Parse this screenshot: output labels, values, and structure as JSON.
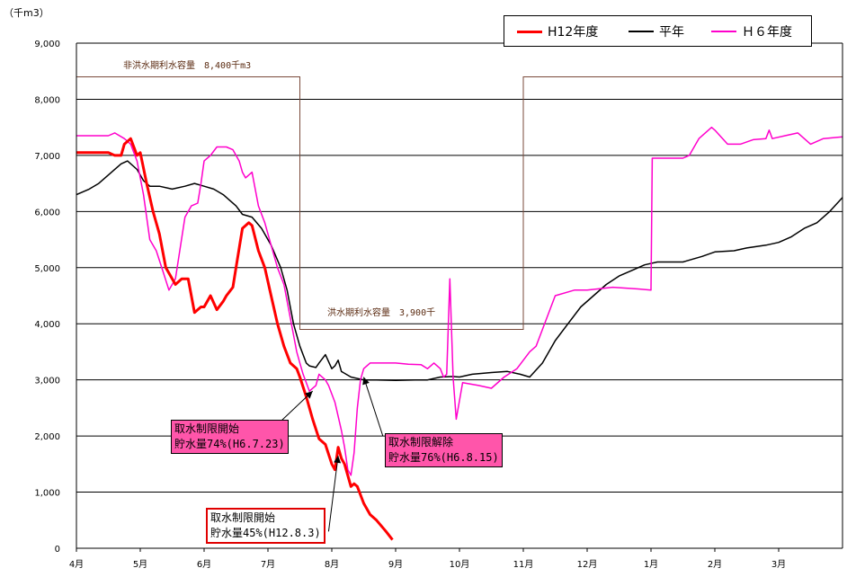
{
  "unit_label": "（千m3）",
  "legend": [
    {
      "label": "H12年度",
      "color": "#ff0000",
      "width": 3
    },
    {
      "label": "平年",
      "color": "#000000",
      "width": 1.5
    },
    {
      "label": "Ｈ６年度",
      "color": "#ff00cc",
      "width": 1.5
    }
  ],
  "annotations": {
    "non_flood_capacity": "非洪水期利水容量　8,400千m3",
    "flood_capacity": "洪水期利水容量　3,900千"
  },
  "callouts": [
    {
      "line1": "取水制限開始",
      "line2": "貯水量74%(H6.7.23)",
      "style": "pink"
    },
    {
      "line1": "取水制限解除",
      "line2": "貯水量76%(H6.8.15)",
      "style": "pink"
    },
    {
      "line1": "取水制限開始",
      "line2": "貯水量45%(H12.8.3)",
      "style": "white"
    }
  ],
  "chart_data": {
    "type": "line",
    "ylim": [
      0,
      9000
    ],
    "yticks": [
      0,
      1000,
      2000,
      3000,
      4000,
      5000,
      6000,
      7000,
      8000,
      9000
    ],
    "ytick_labels": [
      "0",
      "1,000",
      "2,000",
      "3,000",
      "4,000",
      "5,000",
      "6,000",
      "7,000",
      "8,000",
      "9,000"
    ],
    "xlim": [
      0,
      12
    ],
    "xticks": [
      0,
      1,
      2,
      3,
      4,
      5,
      6,
      7,
      8,
      9,
      10,
      11
    ],
    "xtick_labels": [
      "4月",
      "5月",
      "6月",
      "7月",
      "8月",
      "9月",
      "10月",
      "11月",
      "12月",
      "1月",
      "2月",
      "3月"
    ],
    "grid": true,
    "legend_position": "top-right",
    "capacity_line": {
      "x": [
        0,
        3.5,
        3.5,
        7,
        7,
        12
      ],
      "y": [
        8400,
        8400,
        3900,
        3900,
        8400,
        8400
      ]
    },
    "series": [
      {
        "name": "平年",
        "x": [
          0,
          0.2,
          0.35,
          0.55,
          0.7,
          0.8,
          0.95,
          1.05,
          1.15,
          1.3,
          1.5,
          1.7,
          1.85,
          2.0,
          2.15,
          2.3,
          2.5,
          2.6,
          2.75,
          2.9,
          3.05,
          3.2,
          3.3,
          3.4,
          3.5,
          3.6,
          3.65,
          3.75,
          3.8,
          3.9,
          4.0,
          4.05,
          4.1,
          4.15,
          4.3,
          4.5,
          4.7,
          5.0,
          5.3,
          5.5,
          5.7,
          5.9,
          6.0,
          6.2,
          6.5,
          6.75,
          6.95,
          7.1,
          7.3,
          7.5,
          7.7,
          7.9,
          8.1,
          8.3,
          8.5,
          8.7,
          8.9,
          9.1,
          9.5,
          9.8,
          10.0,
          10.3,
          10.5,
          10.8,
          11.0,
          11.2,
          11.4,
          11.6,
          11.8,
          12.0
        ],
        "y": [
          6300,
          6400,
          6500,
          6700,
          6850,
          6900,
          6750,
          6550,
          6450,
          6450,
          6400,
          6450,
          6500,
          6450,
          6400,
          6300,
          6100,
          5950,
          5900,
          5700,
          5400,
          5000,
          4600,
          4000,
          3600,
          3300,
          3250,
          3220,
          3300,
          3450,
          3200,
          3250,
          3350,
          3150,
          3050,
          3000,
          3000,
          2990,
          3000,
          3000,
          3050,
          3060,
          3050,
          3100,
          3130,
          3150,
          3100,
          3050,
          3300,
          3700,
          4000,
          4300,
          4500,
          4700,
          4850,
          4950,
          5050,
          5100,
          5100,
          5200,
          5280,
          5300,
          5350,
          5400,
          5450,
          5550,
          5700,
          5800,
          6000,
          6250
        ]
      },
      {
        "name": "H６年度",
        "x": [
          0,
          0.2,
          0.5,
          0.6,
          0.75,
          0.85,
          0.95,
          1.05,
          1.15,
          1.25,
          1.35,
          1.45,
          1.55,
          1.7,
          1.8,
          1.9,
          1.95,
          2.0,
          2.1,
          2.2,
          2.35,
          2.45,
          2.55,
          2.6,
          2.65,
          2.75,
          2.85,
          2.95,
          3.05,
          3.15,
          3.25,
          3.35,
          3.45,
          3.5,
          3.55,
          3.6,
          3.65,
          3.75,
          3.8,
          3.9,
          3.95,
          4.05,
          4.15,
          4.2,
          4.25,
          4.3,
          4.35,
          4.4,
          4.45,
          4.5,
          4.6,
          4.8,
          5.0,
          5.2,
          5.4,
          5.5,
          5.6,
          5.7,
          5.75,
          5.8,
          5.85,
          5.9,
          5.95,
          6.05,
          6.3,
          6.5,
          6.7,
          6.9,
          7.1,
          7.2,
          7.3,
          7.5,
          7.8,
          8.0,
          8.4,
          8.8,
          9.0,
          9.02,
          9.2,
          9.5,
          9.6,
          9.75,
          9.95,
          10.0,
          10.2,
          10.4,
          10.6,
          10.8,
          10.85,
          10.9,
          11.1,
          11.3,
          11.5,
          11.7,
          12.0
        ],
        "y": [
          7350,
          7350,
          7350,
          7400,
          7300,
          7200,
          6900,
          6300,
          5500,
          5300,
          4950,
          4600,
          4800,
          5900,
          6100,
          6150,
          6500,
          6900,
          7000,
          7150,
          7150,
          7100,
          6900,
          6700,
          6600,
          6700,
          6100,
          5800,
          5400,
          5000,
          4700,
          4100,
          3500,
          3300,
          3100,
          2950,
          2800,
          2900,
          3100,
          3000,
          2900,
          2600,
          2100,
          1800,
          1400,
          1300,
          1700,
          2500,
          3000,
          3200,
          3300,
          3300,
          3300,
          3280,
          3270,
          3200,
          3300,
          3200,
          3050,
          3100,
          4800,
          3050,
          2300,
          2950,
          2900,
          2850,
          3050,
          3200,
          3500,
          3600,
          3900,
          4500,
          4600,
          4600,
          4650,
          4620,
          4600,
          6950,
          6950,
          6950,
          7000,
          7300,
          7500,
          7450,
          7200,
          7200,
          7280,
          7300,
          7450,
          7300,
          7350,
          7400,
          7200,
          7300,
          7330
        ]
      },
      {
        "name": "H12年度",
        "x": [
          0,
          0.3,
          0.5,
          0.6,
          0.7,
          0.75,
          0.85,
          0.95,
          1.0,
          1.1,
          1.2,
          1.3,
          1.4,
          1.55,
          1.65,
          1.75,
          1.85,
          1.95,
          2.0,
          2.1,
          2.2,
          2.3,
          2.35,
          2.45,
          2.5,
          2.6,
          2.7,
          2.75,
          2.85,
          2.95,
          3.05,
          3.15,
          3.25,
          3.35,
          3.45,
          3.5,
          3.6,
          3.7,
          3.8,
          3.9,
          4.0,
          4.05,
          4.1,
          4.15,
          4.2,
          4.3,
          4.35,
          4.4,
          4.5,
          4.6,
          4.7,
          4.85,
          4.95
        ],
        "y": [
          7050,
          7050,
          7050,
          7000,
          7000,
          7200,
          7300,
          7000,
          7050,
          6500,
          6000,
          5600,
          5000,
          4700,
          4800,
          4800,
          4200,
          4300,
          4300,
          4500,
          4250,
          4400,
          4500,
          4650,
          5000,
          5700,
          5800,
          5750,
          5300,
          5000,
          4500,
          4000,
          3600,
          3300,
          3200,
          3050,
          2700,
          2300,
          1950,
          1850,
          1500,
          1400,
          1800,
          1600,
          1500,
          1100,
          1150,
          1100,
          800,
          600,
          500,
          300,
          150
        ]
      }
    ]
  }
}
